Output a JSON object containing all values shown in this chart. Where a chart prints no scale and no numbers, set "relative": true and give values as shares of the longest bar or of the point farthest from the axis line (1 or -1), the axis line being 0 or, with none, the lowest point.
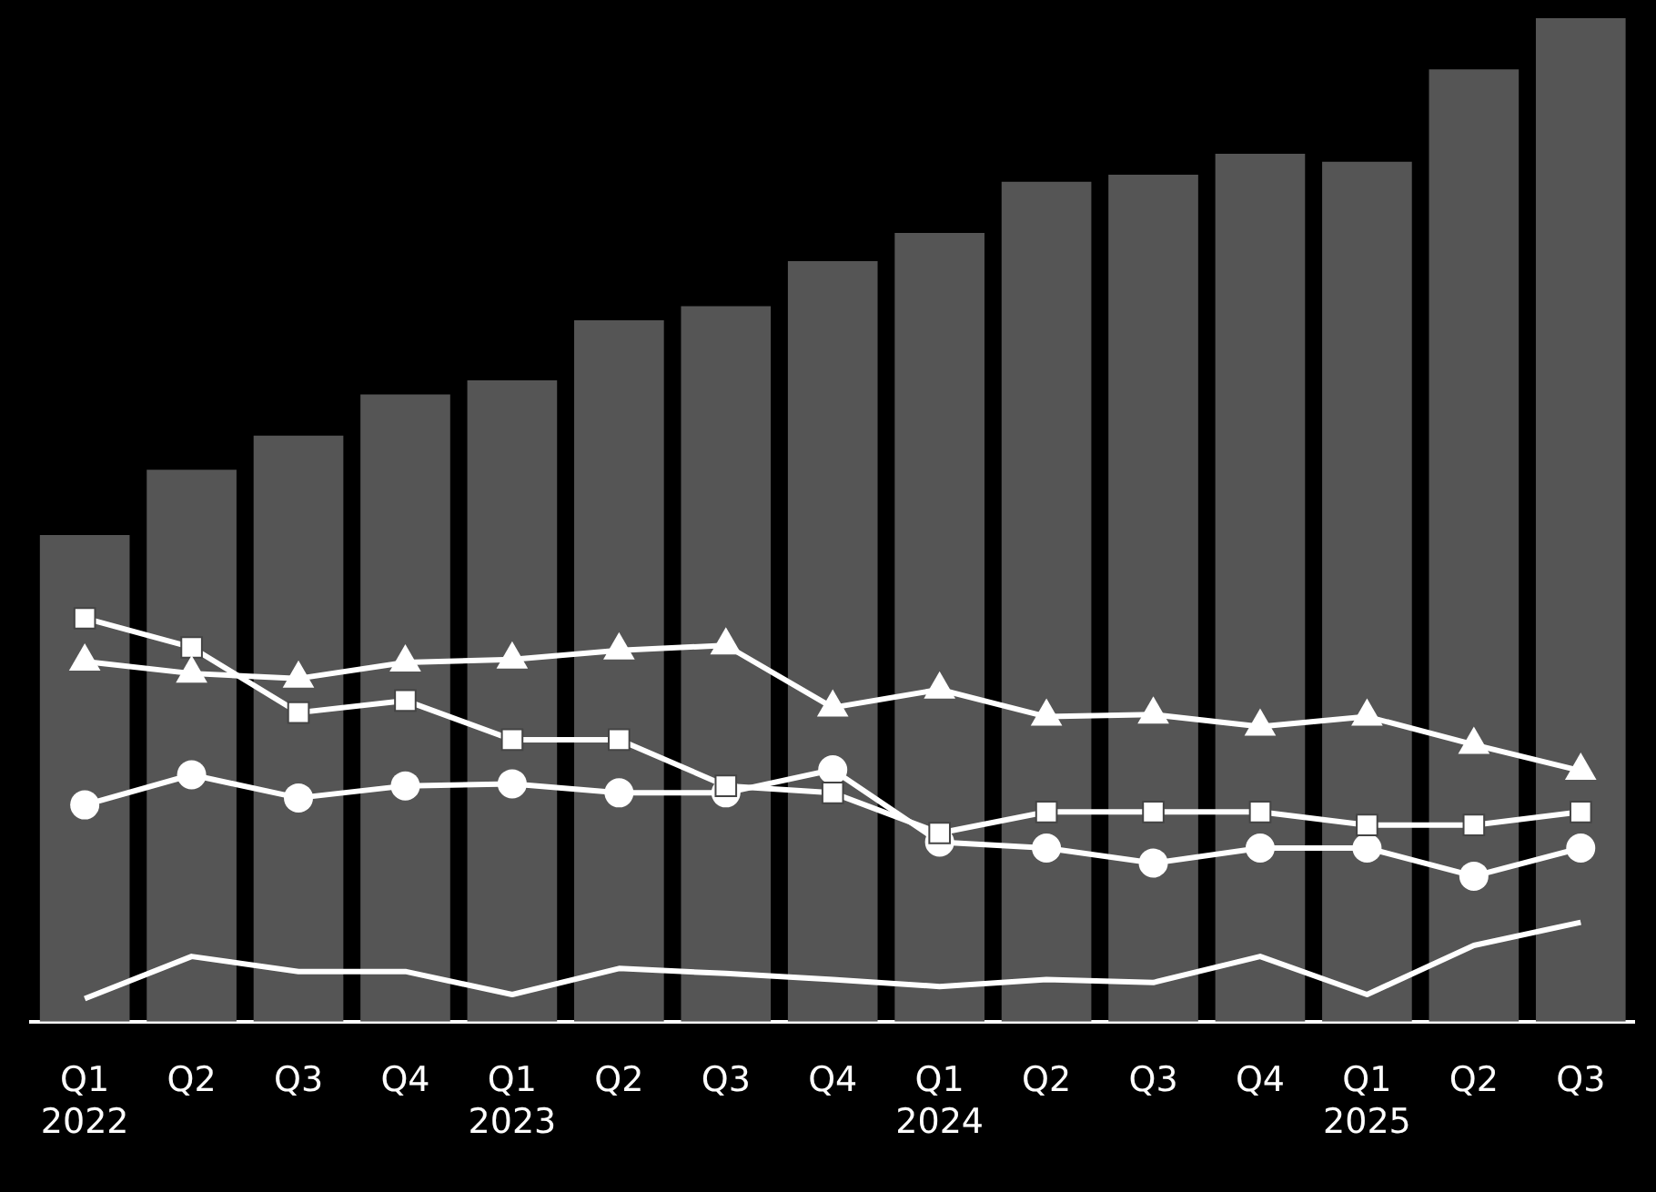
{
  "chart_data": {
    "type": "bar",
    "relative": true,
    "grid": false,
    "legend": false,
    "categories": [
      "Q1\n2022",
      "Q2",
      "Q3",
      "Q4",
      "Q1\n2023",
      "Q2",
      "Q3",
      "Q4",
      "Q1\n2024",
      "Q2",
      "Q3",
      "Q4",
      "Q1\n2025",
      "Q2",
      "Q3"
    ],
    "series": [
      {
        "color": "#555555",
        "values": [
          0.485,
          0.55,
          0.584,
          0.625,
          0.639,
          0.699,
          0.713,
          0.758,
          0.786,
          0.837,
          0.844,
          0.865,
          0.857,
          0.949,
          1
        ]
      },
      {
        "type": "line",
        "color": "#ffffff",
        "marker": "triangle",
        "values": [
          0.359,
          0.347,
          0.342,
          0.358,
          0.361,
          0.37,
          0.375,
          0.313,
          0.331,
          0.304,
          0.306,
          0.294,
          0.304,
          0.276,
          0.25
        ]
      },
      {
        "type": "line",
        "color": "#ffffff",
        "marker": "square",
        "values": [
          0.402,
          0.373,
          0.308,
          0.32,
          0.281,
          0.281,
          0.235,
          0.228,
          0.188,
          0.209,
          0.209,
          0.209,
          0.196,
          0.196,
          0.209
        ]
      },
      {
        "type": "line",
        "color": "#ffffff",
        "marker": "circle",
        "values": [
          0.216,
          0.246,
          0.223,
          0.235,
          0.237,
          0.228,
          0.228,
          0.251,
          0.179,
          0.173,
          0.158,
          0.173,
          0.173,
          0.145,
          0.173
        ]
      },
      {
        "type": "line",
        "color": "#ffffff",
        "marker": "none",
        "values": [
          0.023,
          0.065,
          0.05,
          0.05,
          0.027,
          0.053,
          0.048,
          0.042,
          0.035,
          0.042,
          0.039,
          0.065,
          0.027,
          0.076,
          0.099
        ]
      }
    ]
  }
}
